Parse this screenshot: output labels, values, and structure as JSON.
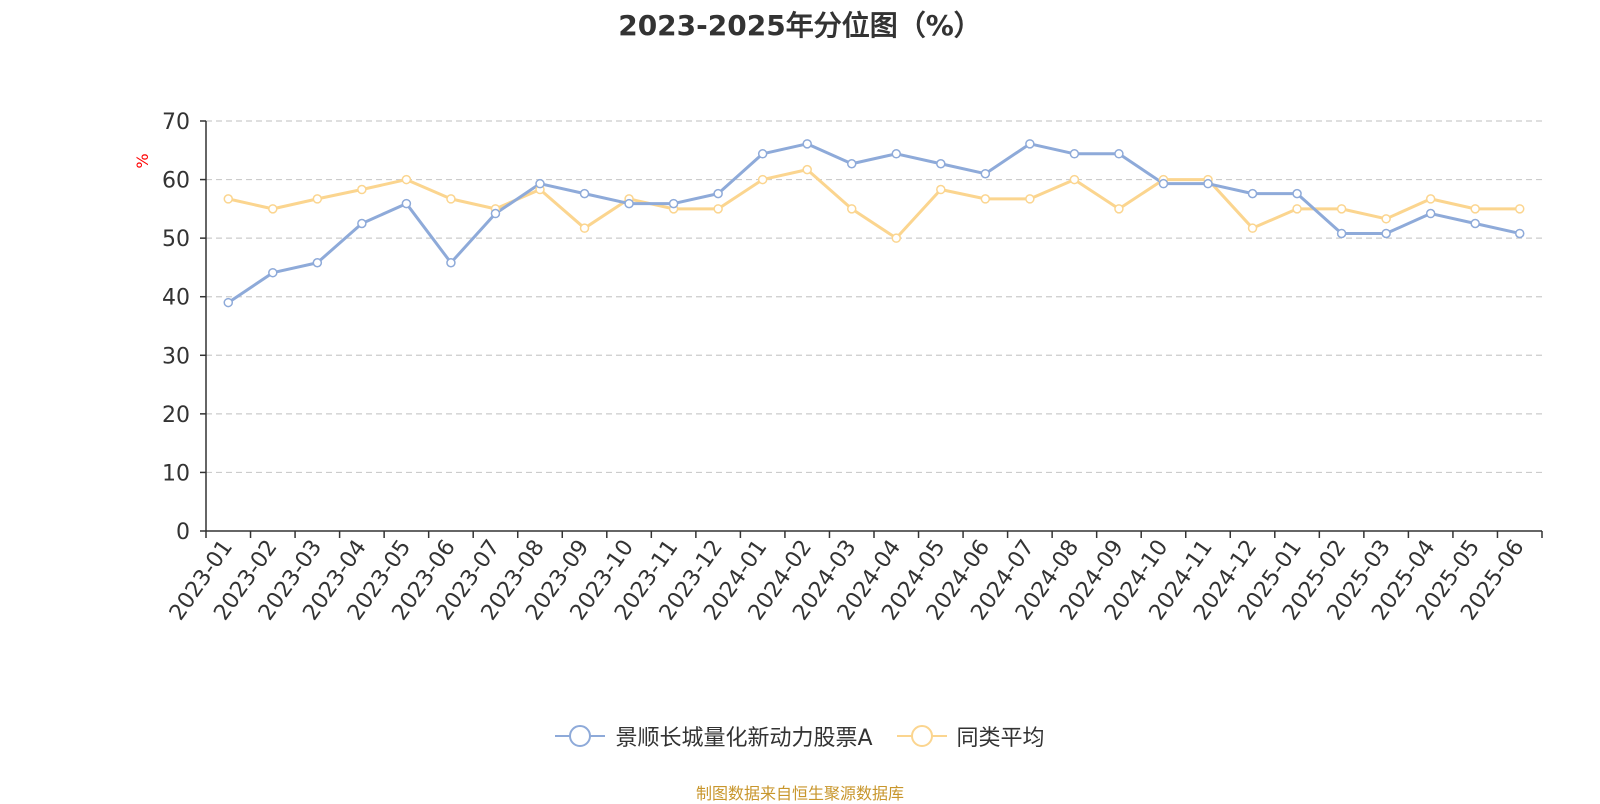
{
  "title": "2023-2025年分位图（%）",
  "source": "制图数据来自恒生聚源数据库",
  "colors": {
    "series_a": "#8eaad9",
    "series_b": "#fbd58f",
    "grid": "#cccccc",
    "axis": "#333333",
    "ylabel": "#ff0000"
  },
  "chart_data": {
    "type": "line",
    "title": "2023-2025年分位图（%）",
    "ylabel": "%",
    "xlabel": "",
    "ylim": [
      0,
      70
    ],
    "yticks": [
      0,
      10,
      20,
      30,
      40,
      50,
      60,
      70
    ],
    "grid": true,
    "legend": "bottom",
    "categories": [
      "2023-01",
      "2023-02",
      "2023-03",
      "2023-04",
      "2023-05",
      "2023-06",
      "2023-07",
      "2023-08",
      "2023-09",
      "2023-10",
      "2023-11",
      "2023-12",
      "2024-01",
      "2024-02",
      "2024-03",
      "2024-04",
      "2024-05",
      "2024-06",
      "2024-07",
      "2024-08",
      "2024-09",
      "2024-10",
      "2024-11",
      "2024-12",
      "2025-01",
      "2025-02",
      "2025-03",
      "2025-04",
      "2025-05",
      "2025-06"
    ],
    "series": [
      {
        "name": "景顺长城量化新动力股票A",
        "values": [
          39.0,
          44.1,
          45.8,
          52.5,
          55.9,
          45.8,
          54.2,
          59.3,
          57.6,
          55.9,
          55.9,
          57.6,
          64.4,
          66.1,
          62.7,
          64.4,
          62.7,
          61.0,
          66.1,
          64.4,
          64.4,
          59.3,
          59.3,
          57.6,
          57.6,
          50.8,
          50.8,
          54.2,
          52.5,
          50.8
        ]
      },
      {
        "name": "同类平均",
        "values": [
          56.7,
          55.0,
          56.7,
          58.3,
          60.0,
          56.7,
          55.0,
          58.3,
          51.7,
          56.7,
          55.0,
          55.0,
          60.0,
          61.7,
          55.0,
          50.0,
          58.3,
          56.7,
          56.7,
          60.0,
          55.0,
          60.0,
          60.0,
          51.7,
          55.0,
          55.0,
          53.3,
          56.7,
          55.0,
          55.0
        ]
      }
    ]
  }
}
